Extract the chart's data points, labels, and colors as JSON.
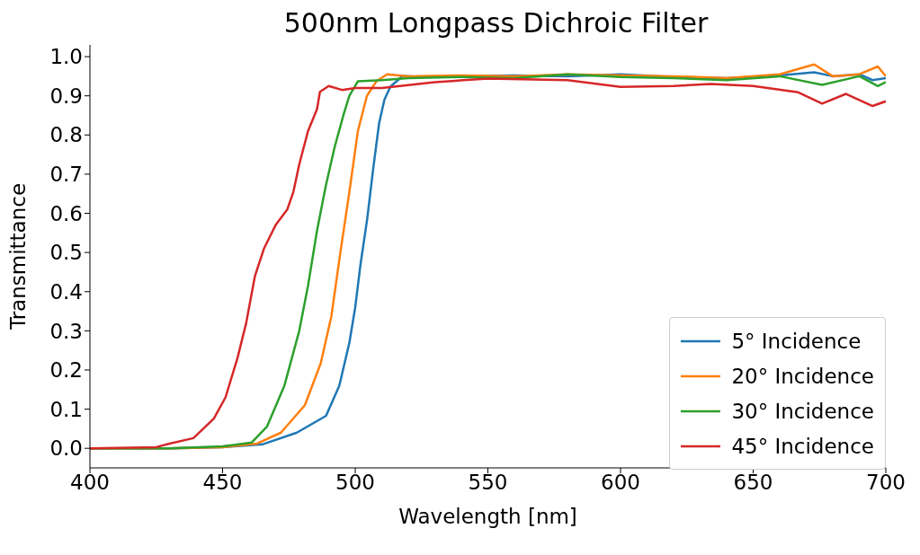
{
  "chart_data": {
    "type": "line",
    "title": "500nm Longpass Dichroic Filter",
    "xlabel": "Wavelength [nm]",
    "ylabel": "Transmittance",
    "xlim": [
      400,
      700
    ],
    "xticks": [
      400,
      450,
      500,
      550,
      600,
      650,
      700
    ],
    "ylim": [
      -0.05,
      1.03
    ],
    "yticks": [
      {
        "value": 0,
        "label": "0.0"
      },
      {
        "value": 0.1,
        "label": "0.1"
      },
      {
        "value": 0.2,
        "label": "0.2"
      },
      {
        "value": 0.3,
        "label": "0.3"
      },
      {
        "value": 0.4,
        "label": "0.4"
      },
      {
        "value": 0.5,
        "label": "0.5"
      },
      {
        "value": 0.6,
        "label": "0.6"
      },
      {
        "value": 0.7,
        "label": "0.7"
      },
      {
        "value": 0.8,
        "label": "0.8"
      },
      {
        "value": 0.9,
        "label": "0.9"
      },
      {
        "value": 1,
        "label": "1.0"
      }
    ],
    "grid": false,
    "legend": "bottom right",
    "marker": "none",
    "line_style": "solid",
    "series": [
      {
        "name": "5° Incidence",
        "color": "#1f77b4",
        "x": [
          400,
          430,
          450,
          465,
          478,
          489,
          494,
          497.8,
          500,
          502,
          504.5,
          506.7,
          509,
          511,
          513.3,
          518,
          525,
          540,
          560,
          580,
          600,
          620,
          640,
          660,
          673,
          680,
          690,
          695,
          700
        ],
        "values": [
          0.0,
          0.0,
          0.003,
          0.01,
          0.04,
          0.083,
          0.16,
          0.27,
          0.36,
          0.47,
          0.585,
          0.71,
          0.83,
          0.89,
          0.924,
          0.951,
          0.948,
          0.95,
          0.952,
          0.95,
          0.955,
          0.948,
          0.945,
          0.952,
          0.96,
          0.95,
          0.955,
          0.94,
          0.945
        ]
      },
      {
        "name": "20° Incidence",
        "color": "#ff7f0e",
        "x": [
          400,
          430,
          450,
          463,
          472,
          481,
          487,
          491,
          494.4,
          497.8,
          501,
          504.4,
          508,
          512,
          520,
          540,
          560,
          580,
          600,
          620,
          640,
          660,
          673,
          680,
          690,
          697,
          700
        ],
        "values": [
          0.0,
          0.0,
          0.003,
          0.012,
          0.04,
          0.11,
          0.217,
          0.337,
          0.5,
          0.655,
          0.81,
          0.9,
          0.937,
          0.955,
          0.95,
          0.952,
          0.95,
          0.955,
          0.952,
          0.95,
          0.945,
          0.955,
          0.98,
          0.95,
          0.955,
          0.975,
          0.95
        ]
      },
      {
        "name": "30° Incidence",
        "color": "#2ca02c",
        "x": [
          400,
          430,
          450,
          461,
          466.7,
          473.3,
          478.9,
          482.2,
          485.6,
          488.9,
          492.2,
          495.6,
          497.8,
          501,
          510,
          520,
          540,
          560,
          580,
          600,
          620,
          640,
          660,
          676,
          690,
          697,
          700
        ],
        "values": [
          0.0,
          0.0,
          0.005,
          0.015,
          0.055,
          0.16,
          0.3,
          0.415,
          0.556,
          0.67,
          0.768,
          0.852,
          0.9,
          0.937,
          0.94,
          0.945,
          0.948,
          0.945,
          0.955,
          0.948,
          0.945,
          0.94,
          0.95,
          0.928,
          0.95,
          0.925,
          0.935
        ]
      },
      {
        "name": "45° Incidence",
        "color": "#d62728",
        "x": [
          400,
          425,
          430,
          439,
          446.7,
          451.1,
          455.6,
          458.9,
          462.2,
          465.6,
          470,
          474.4,
          476.7,
          478.9,
          482.2,
          485.6,
          486.7,
          490,
          495,
          500,
          510,
          530,
          550,
          580,
          600,
          620,
          634,
          650,
          667,
          676,
          685,
          695,
          700
        ],
        "values": [
          0.0,
          0.003,
          0.012,
          0.026,
          0.076,
          0.13,
          0.23,
          0.32,
          0.44,
          0.51,
          0.57,
          0.61,
          0.655,
          0.725,
          0.81,
          0.866,
          0.91,
          0.925,
          0.915,
          0.92,
          0.92,
          0.935,
          0.944,
          0.94,
          0.923,
          0.925,
          0.93,
          0.925,
          0.909,
          0.88,
          0.905,
          0.874,
          0.886
        ]
      }
    ]
  }
}
